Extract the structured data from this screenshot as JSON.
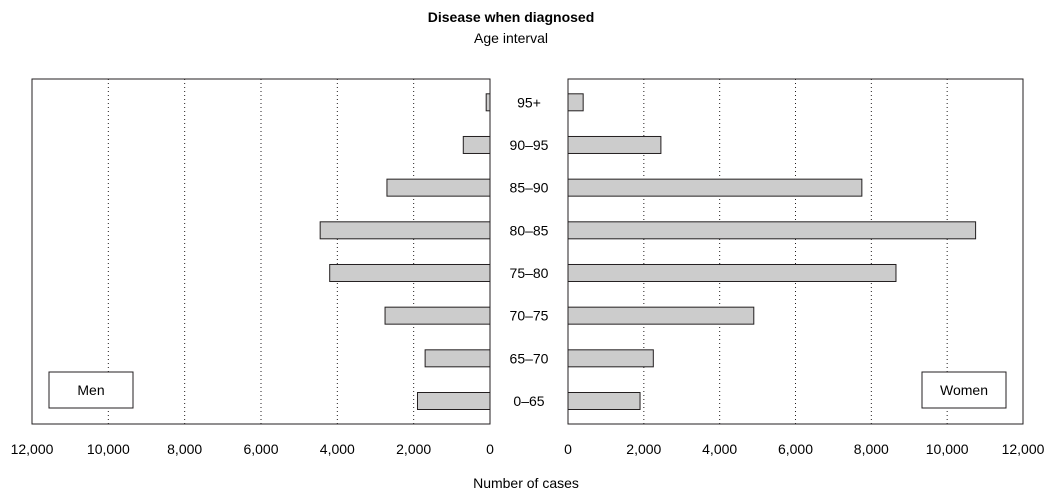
{
  "chart_data": {
    "type": "bar",
    "title": "Disease when diagnosed",
    "subtitle": "Age interval",
    "xlabel": "Number of cases",
    "categories": [
      "0–65",
      "65–70",
      "70–75",
      "75–80",
      "80–85",
      "85–90",
      "90–95",
      "95+"
    ],
    "series": [
      {
        "name": "Men",
        "side": "left",
        "values": [
          1900,
          1700,
          2750,
          4200,
          4450,
          2700,
          700,
          100
        ]
      },
      {
        "name": "Women",
        "side": "right",
        "values": [
          1900,
          2250,
          4900,
          8650,
          10750,
          7750,
          2450,
          400
        ]
      }
    ],
    "xlim": [
      0,
      12000
    ],
    "x_ticks": [
      0,
      2000,
      4000,
      6000,
      8000,
      10000,
      12000
    ],
    "x_tick_labels": [
      "0",
      "2,000",
      "4,000",
      "6,000",
      "8,000",
      "10,000",
      "12,000"
    ],
    "grid": "vertical dotted",
    "bar_color": "#cccccc",
    "legend": {
      "men": "bottom-left",
      "women": "bottom-right"
    }
  }
}
